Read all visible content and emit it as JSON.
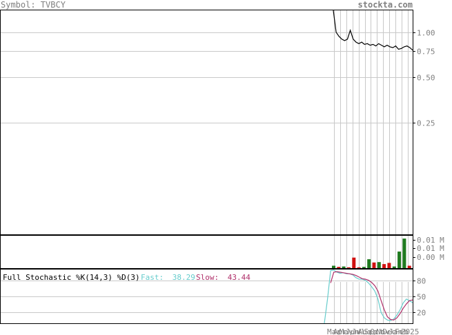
{
  "header": {
    "symbol_label": "Symbol: TVBCY",
    "site": "stockta.com"
  },
  "colors": {
    "background": "#ffffff",
    "grid": "#c8c8c8",
    "frame": "#000000",
    "header_text": "#808080",
    "tick_text": "#808080",
    "price_line": "#000000",
    "volume_up": "#1f7a1f",
    "volume_down": "#d01010",
    "fast_line": "#66cccc",
    "slow_line": "#b0306a"
  },
  "chart_data": [
    {
      "type": "line",
      "panel": "price",
      "scale": "log",
      "y_ticks": [
        1.0,
        0.75,
        0.5,
        0.25
      ],
      "y_tick_labels": [
        "1.00",
        "0.75",
        "0.50",
        "0.25"
      ],
      "ylim": [
        0.045,
        1.4
      ],
      "series": [
        {
          "values": [
            1.4,
            1.0,
            0.94,
            0.9,
            0.88,
            0.9,
            1.03,
            0.9,
            0.86,
            0.84,
            0.86,
            0.83,
            0.84,
            0.82,
            0.83,
            0.81,
            0.84,
            0.82,
            0.8,
            0.82,
            0.8,
            0.79,
            0.81,
            0.77,
            0.78,
            0.8,
            0.81,
            0.79,
            0.76
          ]
        }
      ]
    },
    {
      "type": "bar",
      "panel": "volume",
      "y_tick_labels": [
        "0.01 M",
        "0.01 M",
        "0.00 M"
      ],
      "ylim": [
        0,
        0.016
      ],
      "bars": [
        {
          "color": "up",
          "value": 0.0012
        },
        {
          "color": "down",
          "value": 0.0006
        },
        {
          "color": "up",
          "value": 0.0008
        },
        {
          "color": "down",
          "value": 0.0004
        },
        {
          "color": "down",
          "value": 0.0052
        },
        {
          "color": "down",
          "value": 0.0004
        },
        {
          "color": "up",
          "value": 0.0006
        },
        {
          "color": "up",
          "value": 0.0044
        },
        {
          "color": "down",
          "value": 0.0028
        },
        {
          "color": "up",
          "value": 0.003
        },
        {
          "color": "down",
          "value": 0.002
        },
        {
          "color": "down",
          "value": 0.0026
        },
        {
          "color": "up",
          "value": 0.0008
        },
        {
          "color": "up",
          "value": 0.0082
        },
        {
          "color": "up",
          "value": 0.0146
        },
        {
          "color": "down",
          "value": 0.0012
        }
      ]
    },
    {
      "type": "line",
      "panel": "stochastic",
      "title": "Full Stochastic %K(14,3) %D(3)",
      "fast_label": "Fast:",
      "fast_value": "38.29",
      "slow_label": "Slow:",
      "slow_value": "43.44",
      "y_ticks": [
        80,
        50,
        20
      ],
      "y_tick_labels": [
        "80",
        "50",
        "20"
      ],
      "ylim": [
        0,
        100
      ],
      "x_tick_labels": [
        "Mar",
        "Apr",
        "May",
        "Jun",
        "Jul",
        "Aug",
        "Sep",
        "Oct",
        "Nov",
        "Dec",
        "Jan",
        "Feb",
        "2025"
      ],
      "series": [
        {
          "role": "fast",
          "values": [
            0,
            45,
            98,
            99,
            95,
            93,
            94,
            92,
            92,
            90,
            85,
            82,
            82,
            80,
            75,
            68,
            60,
            45,
            20,
            10,
            6,
            5,
            8,
            15,
            25,
            38,
            45,
            42,
            38.29
          ]
        },
        {
          "role": "slow",
          "values": [
            null,
            null,
            75,
            95,
            96,
            95,
            94,
            93,
            92,
            91,
            89,
            86,
            83,
            82,
            80,
            76,
            70,
            60,
            42,
            25,
            12,
            7,
            6,
            10,
            18,
            28,
            36,
            42,
            43.44
          ]
        }
      ]
    }
  ]
}
